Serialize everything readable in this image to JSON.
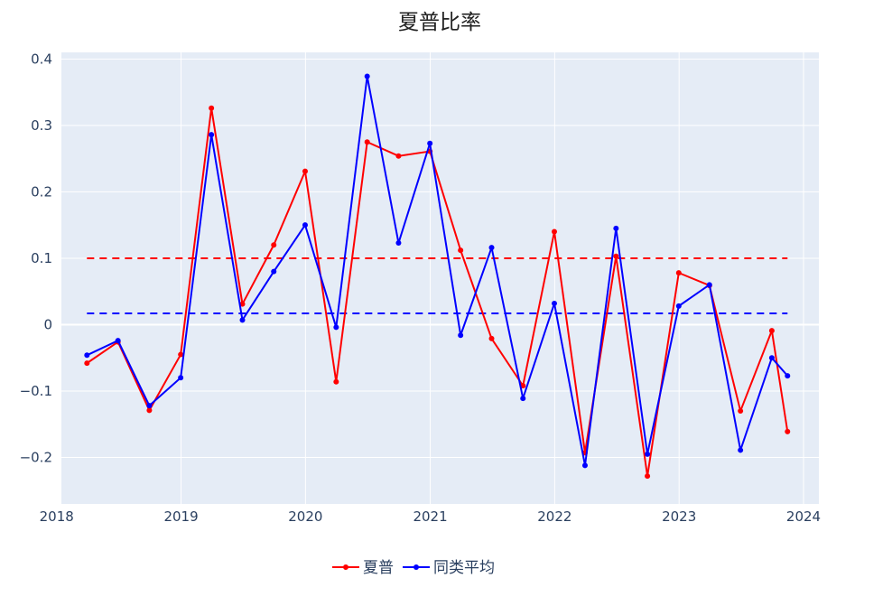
{
  "chart_data": {
    "type": "line",
    "title": "夏普比率",
    "xlabel": "",
    "ylabel": "",
    "x_axis_type": "date",
    "xlim": [
      "2018-01-15",
      "2024-02-15"
    ],
    "ylim": [
      -0.27,
      0.41
    ],
    "x_ticks": [
      "2018",
      "2019",
      "2020",
      "2021",
      "2022",
      "2023",
      "2024"
    ],
    "y_ticks": [
      {
        "value": 0.4,
        "label": "0.4"
      },
      {
        "value": 0.3,
        "label": "0.3"
      },
      {
        "value": 0.2,
        "label": "0.2"
      },
      {
        "value": 0.1,
        "label": "0.1"
      },
      {
        "value": 0,
        "label": "0"
      },
      {
        "value": -0.1,
        "label": "−0.1"
      },
      {
        "value": -0.2,
        "label": "−0.2"
      }
    ],
    "grid": true,
    "legend_position": "bottom-center",
    "plot_background": "#e5ecf6",
    "x": [
      "2018-03-31",
      "2018-06-30",
      "2018-09-30",
      "2018-12-31",
      "2019-03-31",
      "2019-06-30",
      "2019-09-30",
      "2019-12-31",
      "2020-03-31",
      "2020-06-30",
      "2020-09-30",
      "2020-12-31",
      "2021-03-31",
      "2021-06-30",
      "2021-09-30",
      "2021-12-31",
      "2022-03-31",
      "2022-06-30",
      "2022-09-30",
      "2022-12-31",
      "2023-03-31",
      "2023-06-30",
      "2023-09-30",
      "2023-11-15"
    ],
    "series": [
      {
        "name": "夏普",
        "color": "#ff0000",
        "values": [
          -0.058,
          -0.026,
          -0.129,
          -0.045,
          0.326,
          0.031,
          0.12,
          0.231,
          -0.086,
          0.275,
          0.254,
          0.261,
          0.112,
          -0.021,
          -0.092,
          0.14,
          -0.193,
          0.103,
          -0.228,
          0.078,
          0.059,
          -0.13,
          -0.009,
          -0.161
        ]
      },
      {
        "name": "同类平均",
        "color": "#0000ff",
        "values": [
          -0.046,
          -0.024,
          -0.122,
          -0.08,
          0.286,
          0.007,
          0.08,
          0.15,
          -0.004,
          0.374,
          0.123,
          0.273,
          -0.016,
          0.116,
          -0.111,
          0.032,
          -0.212,
          0.145,
          -0.195,
          0.028,
          0.06,
          -0.189,
          -0.05,
          -0.077
        ]
      }
    ],
    "reference_lines": [
      {
        "value": 0.1,
        "color": "#ff0000",
        "x_range": [
          "2018-03-31",
          "2023-11-15"
        ]
      },
      {
        "value": 0.017,
        "color": "#0000ff",
        "x_range": [
          "2018-03-31",
          "2023-11-15"
        ]
      }
    ]
  }
}
